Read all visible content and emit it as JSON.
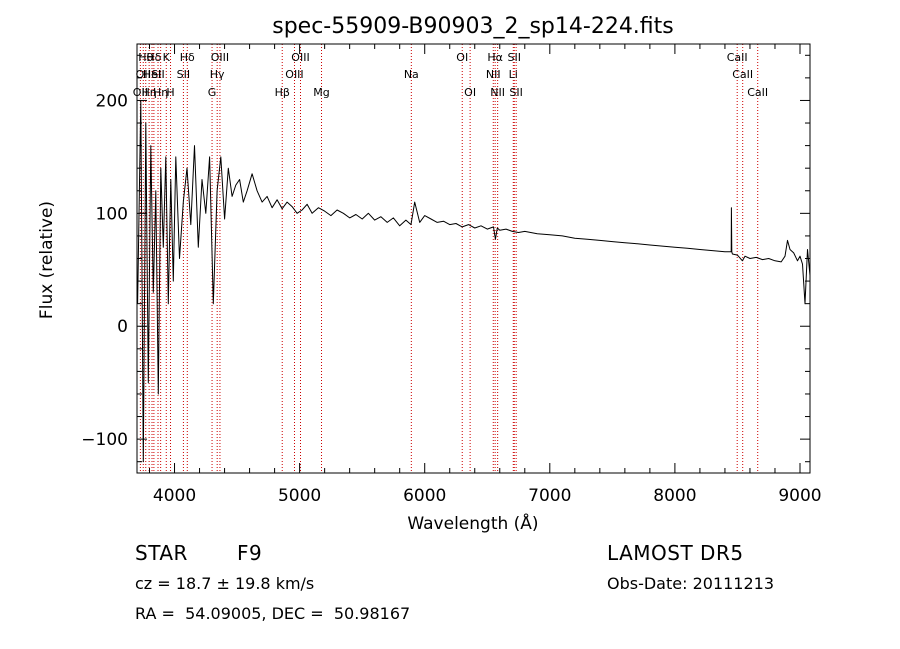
{
  "chart_data": {
    "type": "line",
    "title": "spec-55909-B90903_2_sp14-224.fits",
    "xlabel": "Wavelength (Å)",
    "ylabel": "Flux (relative)",
    "xlim": [
      3700,
      9080
    ],
    "ylim": [
      -130,
      250
    ],
    "xticks": [
      4000,
      5000,
      6000,
      7000,
      8000,
      9000
    ],
    "yticks": [
      -100,
      0,
      100,
      200
    ],
    "grid": false,
    "line_color": "#000000",
    "marker_color": "#cc0000",
    "series": [
      {
        "x": [
          3705,
          3730,
          3750,
          3770,
          3790,
          3810,
          3830,
          3850,
          3870,
          3890,
          3910,
          3930,
          3950,
          3970,
          3990,
          4010,
          4040,
          4070,
          4100,
          4130,
          4160,
          4190,
          4220,
          4250,
          4280,
          4310,
          4340,
          4370,
          4400,
          4430,
          4460,
          4490,
          4520,
          4550,
          4580,
          4620,
          4660,
          4700,
          4740,
          4780,
          4820,
          4860,
          4900,
          4940,
          4980,
          5020,
          5060,
          5100,
          5150,
          5200,
          5250,
          5300,
          5350,
          5400,
          5450,
          5500,
          5550,
          5600,
          5650,
          5700,
          5750,
          5800,
          5850,
          5890,
          5920,
          5960,
          6000,
          6050,
          6100,
          6150,
          6200,
          6250,
          6300,
          6350,
          6400,
          6450,
          6500,
          6550,
          6565,
          6580,
          6600,
          6650,
          6700,
          6750,
          6800,
          6900,
          7000,
          7100,
          7200,
          7300,
          7400,
          7500,
          7600,
          7700,
          7800,
          7900,
          8000,
          8100,
          8200,
          8300,
          8400,
          8450,
          8452,
          8455,
          8460,
          8500,
          8540,
          8560,
          8600,
          8650,
          8700,
          8750,
          8800,
          8850,
          8880,
          8900,
          8920,
          8950,
          8980,
          9000,
          9020,
          9040,
          9060,
          9080
        ],
        "y": [
          20,
          200,
          -120,
          180,
          -50,
          160,
          30,
          120,
          -60,
          140,
          70,
          150,
          20,
          130,
          40,
          150,
          60,
          110,
          140,
          90,
          160,
          70,
          130,
          100,
          150,
          20,
          120,
          150,
          95,
          140,
          115,
          125,
          130,
          110,
          120,
          135,
          120,
          110,
          115,
          105,
          112,
          104,
          110,
          106,
          100,
          103,
          108,
          100,
          105,
          102,
          98,
          103,
          100,
          96,
          99,
          95,
          100,
          94,
          97,
          92,
          96,
          89,
          94,
          90,
          110,
          92,
          98,
          95,
          92,
          93,
          90,
          91,
          88,
          90,
          87,
          89,
          86,
          88,
          77,
          87,
          85,
          86,
          84,
          83,
          84,
          82,
          81,
          80,
          78,
          77,
          76,
          75,
          74,
          73,
          72,
          71,
          70,
          69,
          68,
          67,
          66,
          66,
          105,
          66,
          64,
          63,
          58,
          62,
          60,
          61,
          59,
          60,
          58,
          57,
          62,
          76,
          68,
          65,
          58,
          62,
          55,
          20,
          68,
          45
        ]
      }
    ],
    "lines": [
      {
        "wl": 3727,
        "row": 2,
        "label": "OII"
      },
      {
        "wl": 3750,
        "row": 1,
        "label": "OII"
      },
      {
        "wl": 3770,
        "row": 0,
        "label": "Hθ"
      },
      {
        "wl": 3797,
        "row": 2,
        "label": "Hη"
      },
      {
        "wl": 3820,
        "row": 1,
        "label": "HeI"
      },
      {
        "wl": 3835,
        "row": 0,
        "label": "Hδ"
      },
      {
        "wl": 3868,
        "row": 1,
        "label": "SII"
      },
      {
        "wl": 3889,
        "row": 2,
        "label": "Hη"
      },
      {
        "wl": 3934,
        "row": 0,
        "label": "K"
      },
      {
        "wl": 3968,
        "row": 2,
        "label": "H"
      },
      {
        "wl": 4071,
        "row": 1,
        "label": "SII"
      },
      {
        "wl": 4102,
        "row": 0,
        "label": "Hδ"
      },
      {
        "wl": 4300,
        "row": 2,
        "label": "G"
      },
      {
        "wl": 4341,
        "row": 1,
        "label": "Hγ"
      },
      {
        "wl": 4363,
        "row": 0,
        "label": "OIII"
      },
      {
        "wl": 4861,
        "row": 2,
        "label": "Hβ"
      },
      {
        "wl": 4959,
        "row": 1,
        "label": "OIII"
      },
      {
        "wl": 5007,
        "row": 0,
        "label": "OIII"
      },
      {
        "wl": 5175,
        "row": 2,
        "label": "Mg"
      },
      {
        "wl": 5893,
        "row": 1,
        "label": "Na"
      },
      {
        "wl": 6300,
        "row": 0,
        "label": "OI"
      },
      {
        "wl": 6363,
        "row": 2,
        "label": "OI"
      },
      {
        "wl": 6548,
        "row": 1,
        "label": "NII"
      },
      {
        "wl": 6563,
        "row": 0,
        "label": "Hα"
      },
      {
        "wl": 6583,
        "row": 2,
        "label": "NII"
      },
      {
        "wl": 6708,
        "row": 1,
        "label": "Li"
      },
      {
        "wl": 6716,
        "row": 0,
        "label": "SII"
      },
      {
        "wl": 6731,
        "row": 2,
        "label": "SII"
      },
      {
        "wl": 8498,
        "row": 0,
        "label": "CaII"
      },
      {
        "wl": 8542,
        "row": 1,
        "label": "CaII"
      },
      {
        "wl": 8662,
        "row": 2,
        "label": "CaII"
      }
    ]
  },
  "info": {
    "class_type": "STAR",
    "subclass": "F9",
    "survey": "LAMOST DR5",
    "redshift": "cz = 18.7 ± 19.8 km/s",
    "obs_date": "Obs-Date: 20111213",
    "coords": "RA =  54.09005, DEC =  50.98167"
  }
}
